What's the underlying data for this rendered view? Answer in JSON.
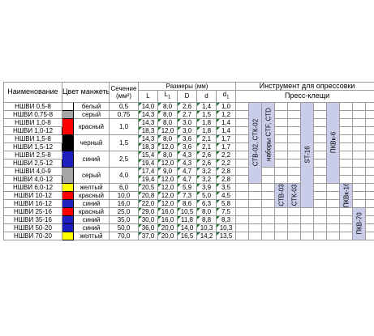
{
  "headers": {
    "name": "Наименование",
    "color": "Цвет манжеты",
    "section": "Сечение",
    "section_unit": "(мм²)",
    "dims": "Размеры (мм)",
    "tool": "Инструмент для опрессовки",
    "pliers": "Пресс-клещи",
    "L": "L",
    "L1": "L",
    "L1_sub": "1",
    "D": "D",
    "d": "d",
    "d1": "d",
    "d1_sub": "1"
  },
  "rows": [
    {
      "name": "НШВИ 0,5-8",
      "L": "14,0",
      "L1": "8,0",
      "D": "2,6",
      "d": "1,4",
      "d1": "1,0"
    },
    {
      "name": "НШВИ 0,75-8",
      "L": "14,3",
      "L1": "8,0",
      "D": "2,7",
      "d": "1,5",
      "d1": "1,2"
    },
    {
      "name": "НШВИ 1,0-8",
      "L": "14,3",
      "L1": "8,0",
      "D": "3,0",
      "d": "1,8",
      "d1": "1,4"
    },
    {
      "name": "НШВИ 1,0-12",
      "L": "18,3",
      "L1": "12,0",
      "D": "3,0",
      "d": "1,8",
      "d1": "1,4"
    },
    {
      "name": "НШВИ 1,5-8",
      "L": "14,3",
      "L1": "8,0",
      "D": "3,6",
      "d": "2,1",
      "d1": "1,7"
    },
    {
      "name": "НШВИ 1,5-12",
      "L": "18,3",
      "L1": "12,0",
      "D": "3,6",
      "d": "2,1",
      "d1": "1,7"
    },
    {
      "name": "НШВИ 2,5-8",
      "L": "15,4",
      "L1": "8,0",
      "D": "4,3",
      "d": "2,6",
      "d1": "2,2"
    },
    {
      "name": "НШВИ 2,5-12",
      "L": "19,4",
      "L1": "12,0",
      "D": "4,3",
      "d": "2,6",
      "d1": "2,2"
    },
    {
      "name": "НШВИ 4,0-9",
      "L": "17,4",
      "L1": "9,0",
      "D": "4,7",
      "d": "3,2",
      "d1": "2,8"
    },
    {
      "name": "НШВИ 4,0-12",
      "L": "19,4",
      "L1": "12,0",
      "D": "4,7",
      "d": "3,2",
      "d1": "2,8"
    },
    {
      "name": "НШВИ 6,0-12",
      "L": "20,5",
      "L1": "12,0",
      "D": "5,9",
      "d": "3,9",
      "d1": "3,5"
    },
    {
      "name": "НШВИ 10-12",
      "L": "20,8",
      "L1": "12,0",
      "D": "7,3",
      "d": "5,0",
      "d1": "4,5"
    },
    {
      "name": "НШВИ 16-12",
      "L": "22,0",
      "L1": "12,0",
      "D": "8,6",
      "d": "6,3",
      "d1": "5,8"
    },
    {
      "name": "НШВИ 25-16",
      "L": "29,0",
      "L1": "16,0",
      "D": "10,5",
      "d": "8,0",
      "d1": "7,5"
    },
    {
      "name": "НШВИ 35-16",
      "L": "30,0",
      "L1": "16,0",
      "D": "11,8",
      "d": "8,8",
      "d1": "8,3"
    },
    {
      "name": "НШВИ 50-20",
      "L": "36,0",
      "L1": "20,0",
      "D": "14,0",
      "d": "10,3",
      "d1": "10,3"
    },
    {
      "name": "НШВИ 70-20",
      "L": "37,0",
      "L1": "20,0",
      "D": "16,5",
      "d": "14,2",
      "d1": "13,5"
    }
  ],
  "groups": [
    {
      "color_name": "белый",
      "section": "0,5",
      "swatch": "#ffffff"
    },
    {
      "color_name": "серый",
      "section": "0,75",
      "swatch": "#a6a6a6"
    },
    {
      "color_name": "красный",
      "section": "1,0",
      "swatch": "#ff0000"
    },
    {
      "color_name": "черный",
      "section": "1,5",
      "swatch": "#000000"
    },
    {
      "color_name": "синий",
      "section": "2,5",
      "swatch": "#1f1fbf"
    },
    {
      "color_name": "серый",
      "section": "4,0",
      "swatch": "#a6a6a6"
    },
    {
      "color_name": "желтый",
      "section": "6,0",
      "swatch": "#ffff00"
    },
    {
      "color_name": "красный",
      "section": "10,0",
      "swatch": "#ff0000"
    },
    {
      "color_name": "синий",
      "section": "16,0",
      "swatch": "#1f1fbf"
    },
    {
      "color_name": "красный",
      "section": "25,0",
      "swatch": "#ff0000"
    },
    {
      "color_name": "синий",
      "section": "35,0",
      "swatch": "#1f1fbf"
    },
    {
      "color_name": "синий",
      "section": "50,0",
      "swatch": "#1f1fbf"
    },
    {
      "color_name": "желтый",
      "section": "70,0",
      "swatch": "#ffff00"
    }
  ],
  "tools": {
    "t1": "СТВ-02, СТК-02",
    "t2": "наборы CTF, CTD",
    "t3": "СТВ-03",
    "t4": "СТК-03",
    "t5": "ST-16",
    "t6": "ПКВк-6",
    "t7": "ПКВк-16",
    "t8": "ПКВ-70"
  },
  "colors": {
    "tool_fill": "#c9cdea",
    "marker": "#1f7a3a"
  }
}
